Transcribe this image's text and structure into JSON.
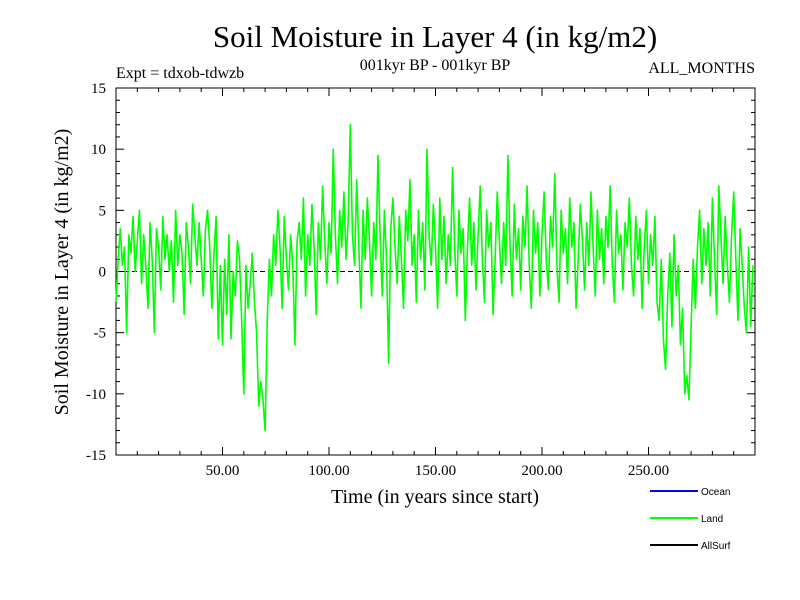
{
  "chart_data": {
    "type": "line",
    "title": "Soil Moisture in Layer 4 (in kg/m2)",
    "subtitle_left": "Expt = tdxob-tdwzb",
    "subtitle_center": "001kyr BP - 001kyr BP",
    "subtitle_right": "ALL_MONTHS",
    "xlabel": "Time (in years since start)",
    "ylabel": "Soil Moisture in Layer 4 (in kg/m2)",
    "xlim": [
      0,
      300
    ],
    "ylim": [
      -15,
      15
    ],
    "xticks": [
      {
        "value": 50,
        "label": "50.00"
      },
      {
        "value": 100,
        "label": "100.00"
      },
      {
        "value": 150,
        "label": "150.00"
      },
      {
        "value": 200,
        "label": "200.00"
      },
      {
        "value": 250,
        "label": "250.00"
      }
    ],
    "yticks": [
      {
        "value": 15,
        "label": "15"
      },
      {
        "value": 10,
        "label": "10"
      },
      {
        "value": 5,
        "label": "5"
      },
      {
        "value": 0,
        "label": "0"
      },
      {
        "value": -5,
        "label": "-5"
      },
      {
        "value": -10,
        "label": "-10"
      },
      {
        "value": -15,
        "label": "-15"
      }
    ],
    "zero_line": true,
    "legend": [
      {
        "name": "Ocean",
        "color": "#0000ff"
      },
      {
        "name": "Land",
        "color": "#00ff00"
      },
      {
        "name": "AllSurf",
        "color": "#000000"
      }
    ],
    "legend_position": "bottom-right",
    "series": [
      {
        "name": "Land",
        "color": "#00ff00",
        "x_start": 0,
        "x_step": 1,
        "values": [
          -2.5,
          1.0,
          3.5,
          0.5,
          2.0,
          -5.0,
          3.0,
          1.5,
          4.5,
          0.0,
          2.5,
          5.0,
          -1.0,
          3.0,
          0.5,
          -3.0,
          4.0,
          1.0,
          -5.0,
          3.5,
          2.0,
          -1.5,
          4.5,
          1.0,
          3.0,
          0.0,
          2.5,
          -2.5,
          5.0,
          0.5,
          3.0,
          1.5,
          -3.5,
          4.0,
          2.0,
          -1.0,
          5.5,
          3.0,
          0.5,
          4.0,
          1.0,
          -2.0,
          3.5,
          5.0,
          2.0,
          -3.0,
          1.5,
          4.5,
          -5.5,
          0.5,
          -6.0,
          1.0,
          -3.5,
          3.0,
          -5.5,
          0.0,
          -2.0,
          2.5,
          1.0,
          -4.0,
          -10.0,
          0.5,
          -3.0,
          -1.0,
          1.5,
          -2.5,
          -5.0,
          -11.0,
          -9.0,
          -10.5,
          -13.0,
          -4.0,
          1.0,
          -2.0,
          3.0,
          0.5,
          5.0,
          2.0,
          -3.0,
          4.5,
          1.0,
          -1.5,
          3.0,
          0.5,
          -6.0,
          2.5,
          4.0,
          1.0,
          6.0,
          -2.0,
          3.0,
          0.5,
          5.5,
          2.0,
          -3.5,
          4.0,
          1.0,
          7.0,
          2.5,
          -1.0,
          4.0,
          1.5,
          10.0,
          3.0,
          -1.0,
          5.0,
          2.0,
          6.5,
          1.0,
          4.0,
          12.0,
          3.0,
          0.5,
          7.5,
          2.0,
          -3.0,
          5.0,
          1.0,
          6.0,
          2.5,
          -2.0,
          4.0,
          1.0,
          9.5,
          3.0,
          -2.0,
          5.0,
          1.0,
          -7.5,
          3.5,
          6.0,
          2.0,
          -1.0,
          4.5,
          1.0,
          -3.0,
          5.0,
          2.5,
          7.5,
          0.5,
          3.0,
          -2.5,
          5.0,
          1.0,
          4.0,
          -1.5,
          10.0,
          3.0,
          0.5,
          5.5,
          2.0,
          -3.0,
          6.0,
          1.0,
          4.5,
          -1.0,
          3.0,
          0.5,
          8.5,
          2.0,
          -2.0,
          5.0,
          1.5,
          3.5,
          -4.0,
          2.0,
          6.0,
          0.5,
          4.0,
          -1.5,
          3.0,
          7.0,
          1.0,
          -2.5,
          5.0,
          2.0,
          4.0,
          -3.5,
          1.0,
          6.5,
          2.5,
          -1.0,
          4.0,
          0.5,
          9.5,
          2.0,
          -2.0,
          5.5,
          1.0,
          3.5,
          -1.5,
          4.5,
          2.0,
          7.0,
          0.5,
          -3.0,
          5.0,
          1.5,
          4.0,
          -2.0,
          3.0,
          6.5,
          1.0,
          -1.5,
          4.5,
          2.0,
          8.0,
          0.5,
          -2.5,
          5.0,
          1.5,
          3.5,
          -1.0,
          6.0,
          2.0,
          4.0,
          -3.0,
          1.0,
          5.5,
          2.5,
          -1.5,
          4.0,
          0.5,
          6.5,
          2.0,
          -2.0,
          5.0,
          1.0,
          3.5,
          -1.0,
          4.5,
          2.0,
          7.0,
          0.5,
          -2.5,
          5.0,
          1.5,
          3.0,
          -1.5,
          4.0,
          2.0,
          6.0,
          0.5,
          -2.0,
          4.5,
          1.0,
          3.5,
          -3.0,
          2.0,
          5.0,
          -1.0,
          3.0,
          0.5,
          4.5,
          -2.5,
          -4.0,
          1.0,
          -5.5,
          -8.0,
          -2.0,
          1.5,
          -4.5,
          3.0,
          -2.0,
          0.5,
          -6.0,
          -3.0,
          -10.0,
          -8.5,
          -10.5,
          -4.5,
          1.0,
          -3.0,
          2.0,
          5.0,
          -1.0,
          3.5,
          0.5,
          4.0,
          -2.0,
          6.0,
          1.0,
          -3.5,
          7.0,
          3.0,
          -1.0,
          4.5,
          0.5,
          -2.5,
          3.0,
          6.5,
          1.0,
          -4.0,
          3.5,
          0.5,
          -3.0,
          -5.0,
          2.0,
          -4.5,
          0.5
        ]
      }
    ]
  }
}
